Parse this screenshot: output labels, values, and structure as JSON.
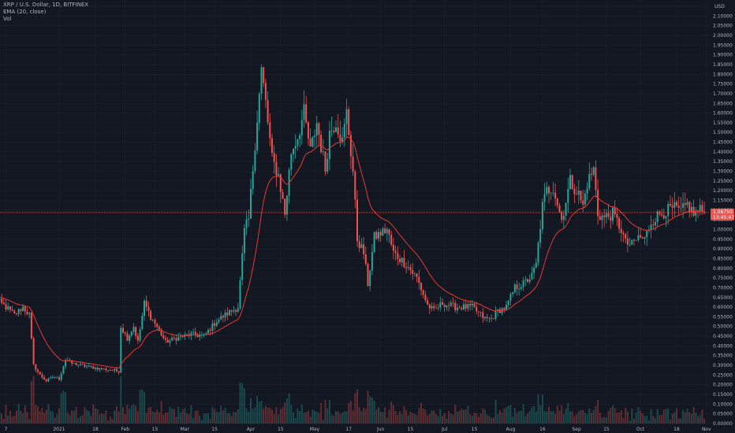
{
  "legend": {
    "symbol": "XRP / U.S. Dollar, 1D, BITFINEX",
    "ema": "EMA (20, close)",
    "vol": "Vol"
  },
  "axis": {
    "currency": "USD"
  },
  "current_price": {
    "price": "1.08750",
    "countdown": "13:45:47"
  },
  "colors": {
    "background": "#131722",
    "grid": "#1e222d",
    "up": "#26a69a",
    "down": "#ef5350",
    "ema": "#e53935",
    "price_line": "#ef5350",
    "axis_text": "#b2b5be"
  },
  "chart_data": {
    "type": "candlestick",
    "title": "XRP / U.S. Dollar, 1D, BITFINEX",
    "indicators": [
      "EMA (20, close)",
      "Vol"
    ],
    "y_axis": {
      "min": 0,
      "max": 2.15,
      "step": 0.05,
      "scale": "linear",
      "position": "right",
      "unit": "USD"
    },
    "x_ticks": [
      "7",
      "2021",
      "18",
      "Feb",
      "15",
      "Mar",
      "15",
      "Apr",
      "15",
      "May",
      "17",
      "Jun",
      "15",
      "Jul",
      "15",
      "Aug",
      "16",
      "Sep",
      "15",
      "Oct",
      "18",
      "Nov"
    ],
    "x_tick_days": [
      -25,
      0,
      17,
      31,
      45,
      59,
      73,
      90,
      104,
      120,
      136,
      151,
      165,
      181,
      195,
      212,
      227,
      243,
      257,
      273,
      290,
      304
    ],
    "last_price": 1.0875,
    "close_anchors": [
      [
        -31,
        0.65
      ],
      [
        -25,
        0.6
      ],
      [
        -21,
        0.56
      ],
      [
        -17,
        0.6
      ],
      [
        -14,
        0.56
      ],
      [
        -12,
        0.3
      ],
      [
        -9,
        0.25
      ],
      [
        -6,
        0.22
      ],
      [
        -3,
        0.24
      ],
      [
        0,
        0.23
      ],
      [
        3,
        0.33
      ],
      [
        6,
        0.31
      ],
      [
        10,
        0.3
      ],
      [
        15,
        0.29
      ],
      [
        21,
        0.28
      ],
      [
        28,
        0.27
      ],
      [
        29,
        0.5
      ],
      [
        32,
        0.44
      ],
      [
        35,
        0.5
      ],
      [
        37,
        0.42
      ],
      [
        40,
        0.62
      ],
      [
        43,
        0.55
      ],
      [
        47,
        0.48
      ],
      [
        50,
        0.42
      ],
      [
        55,
        0.44
      ],
      [
        62,
        0.46
      ],
      [
        68,
        0.45
      ],
      [
        74,
        0.53
      ],
      [
        78,
        0.56
      ],
      [
        84,
        0.6
      ],
      [
        87,
        0.99
      ],
      [
        89,
        1.05
      ],
      [
        92,
        1.45
      ],
      [
        95,
        1.82
      ],
      [
        97,
        1.65
      ],
      [
        100,
        1.36
      ],
      [
        103,
        1.28
      ],
      [
        106,
        1.08
      ],
      [
        109,
        1.4
      ],
      [
        112,
        1.48
      ],
      [
        115,
        1.6
      ],
      [
        118,
        1.4
      ],
      [
        121,
        1.55
      ],
      [
        125,
        1.31
      ],
      [
        127,
        1.5
      ],
      [
        130,
        1.56
      ],
      [
        133,
        1.45
      ],
      [
        135,
        1.6
      ],
      [
        138,
        1.3
      ],
      [
        140,
        0.95
      ],
      [
        143,
        0.88
      ],
      [
        145,
        0.72
      ],
      [
        148,
        0.96
      ],
      [
        151,
        0.98
      ],
      [
        154,
        1.0
      ],
      [
        157,
        0.88
      ],
      [
        160,
        0.85
      ],
      [
        163,
        0.82
      ],
      [
        168,
        0.75
      ],
      [
        173,
        0.61
      ],
      [
        176,
        0.58
      ],
      [
        180,
        0.62
      ],
      [
        186,
        0.6
      ],
      [
        194,
        0.6
      ],
      [
        200,
        0.54
      ],
      [
        203,
        0.54
      ],
      [
        206,
        0.58
      ],
      [
        210,
        0.6
      ],
      [
        214,
        0.7
      ],
      [
        218,
        0.72
      ],
      [
        222,
        0.76
      ],
      [
        224,
        0.82
      ],
      [
        227,
        1.12
      ],
      [
        229,
        1.2
      ],
      [
        232,
        1.22
      ],
      [
        236,
        1.05
      ],
      [
        240,
        1.25
      ],
      [
        244,
        1.18
      ],
      [
        246,
        1.12
      ],
      [
        248,
        1.24
      ],
      [
        251,
        1.31
      ],
      [
        253,
        1.08
      ],
      [
        256,
        1.06
      ],
      [
        260,
        1.08
      ],
      [
        264,
        1.0
      ],
      [
        266,
        0.93
      ],
      [
        269,
        0.92
      ],
      [
        272,
        0.96
      ],
      [
        275,
        0.95
      ],
      [
        278,
        1.04
      ],
      [
        282,
        1.08
      ],
      [
        286,
        1.1
      ],
      [
        289,
        1.11
      ],
      [
        292,
        1.09
      ],
      [
        295,
        1.13
      ],
      [
        298,
        1.08
      ],
      [
        301,
        1.1
      ],
      [
        303,
        1.0875
      ]
    ],
    "volume_note": "daily volume histogram along the bottom, green for up days and red for down days"
  }
}
